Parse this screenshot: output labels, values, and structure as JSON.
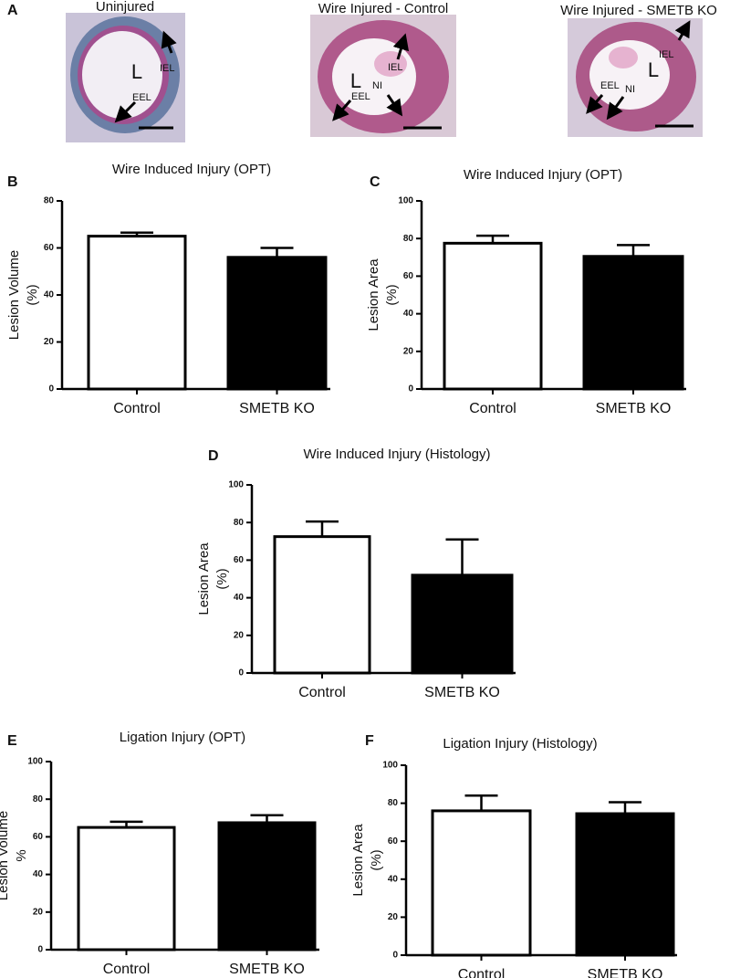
{
  "panel_a": {
    "panel": "A",
    "images": [
      {
        "title": "Uninjured",
        "labels": [
          "L",
          "IEL",
          "EEL"
        ]
      },
      {
        "title": "Wire Injured - Control",
        "labels": [
          "IEL",
          "L",
          "EEL",
          "NI"
        ]
      },
      {
        "title": "Wire Injured - SMETB KO",
        "labels": [
          "IEL",
          "L",
          "EEL",
          "NI"
        ]
      }
    ]
  },
  "chart_data": [
    {
      "type": "bar",
      "panel": "B",
      "title": "Wire Induced Injury (OPT)",
      "ylabel": [
        "Lesion Volume",
        "(%)"
      ],
      "categories": [
        "Control",
        "SMETB KO"
      ],
      "values": [
        65,
        56
      ],
      "errors": [
        1.5,
        4
      ],
      "colors": [
        "#ffffff",
        "#000000"
      ],
      "ylim": [
        0,
        80
      ],
      "yticks": [
        0,
        20,
        40,
        60,
        80
      ]
    },
    {
      "type": "bar",
      "panel": "C",
      "title": "Wire Induced Injury (OPT)",
      "ylabel": [
        "Lesion Area",
        "(%)"
      ],
      "categories": [
        "Control",
        "SMETB KO"
      ],
      "values": [
        77.5,
        70.5
      ],
      "errors": [
        4,
        6
      ],
      "colors": [
        "#ffffff",
        "#000000"
      ],
      "ylim": [
        0,
        100
      ],
      "yticks": [
        0,
        20,
        40,
        60,
        80,
        100
      ]
    },
    {
      "type": "bar",
      "panel": "D",
      "title": "Wire Induced Injury (Histology)",
      "ylabel": [
        "Lesion Area",
        "(%)"
      ],
      "categories": [
        "Control",
        "SMETB KO"
      ],
      "values": [
        72.5,
        52
      ],
      "errors": [
        8,
        19
      ],
      "colors": [
        "#ffffff",
        "#000000"
      ],
      "ylim": [
        0,
        100
      ],
      "yticks": [
        0,
        20,
        40,
        60,
        80,
        100
      ]
    },
    {
      "type": "bar",
      "panel": "E",
      "title": "Ligation Injury (OPT)",
      "ylabel": [
        "Lesion Volume",
        "%"
      ],
      "categories": [
        "Control",
        "SMETB KO"
      ],
      "values": [
        65,
        67.5
      ],
      "errors": [
        3,
        4
      ],
      "colors": [
        "#ffffff",
        "#000000"
      ],
      "ylim": [
        0,
        100
      ],
      "yticks": [
        0,
        20,
        40,
        60,
        80,
        100
      ]
    },
    {
      "type": "bar",
      "panel": "F",
      "title": "Ligation Injury (Histology)",
      "ylabel": [
        "Lesion Area",
        "(%)"
      ],
      "categories": [
        "Control",
        "SMETB KO"
      ],
      "values": [
        76,
        74.5
      ],
      "errors": [
        8,
        6
      ],
      "colors": [
        "#ffffff",
        "#000000"
      ],
      "ylim": [
        0,
        100
      ],
      "yticks": [
        0,
        20,
        40,
        60,
        80,
        100
      ]
    }
  ]
}
